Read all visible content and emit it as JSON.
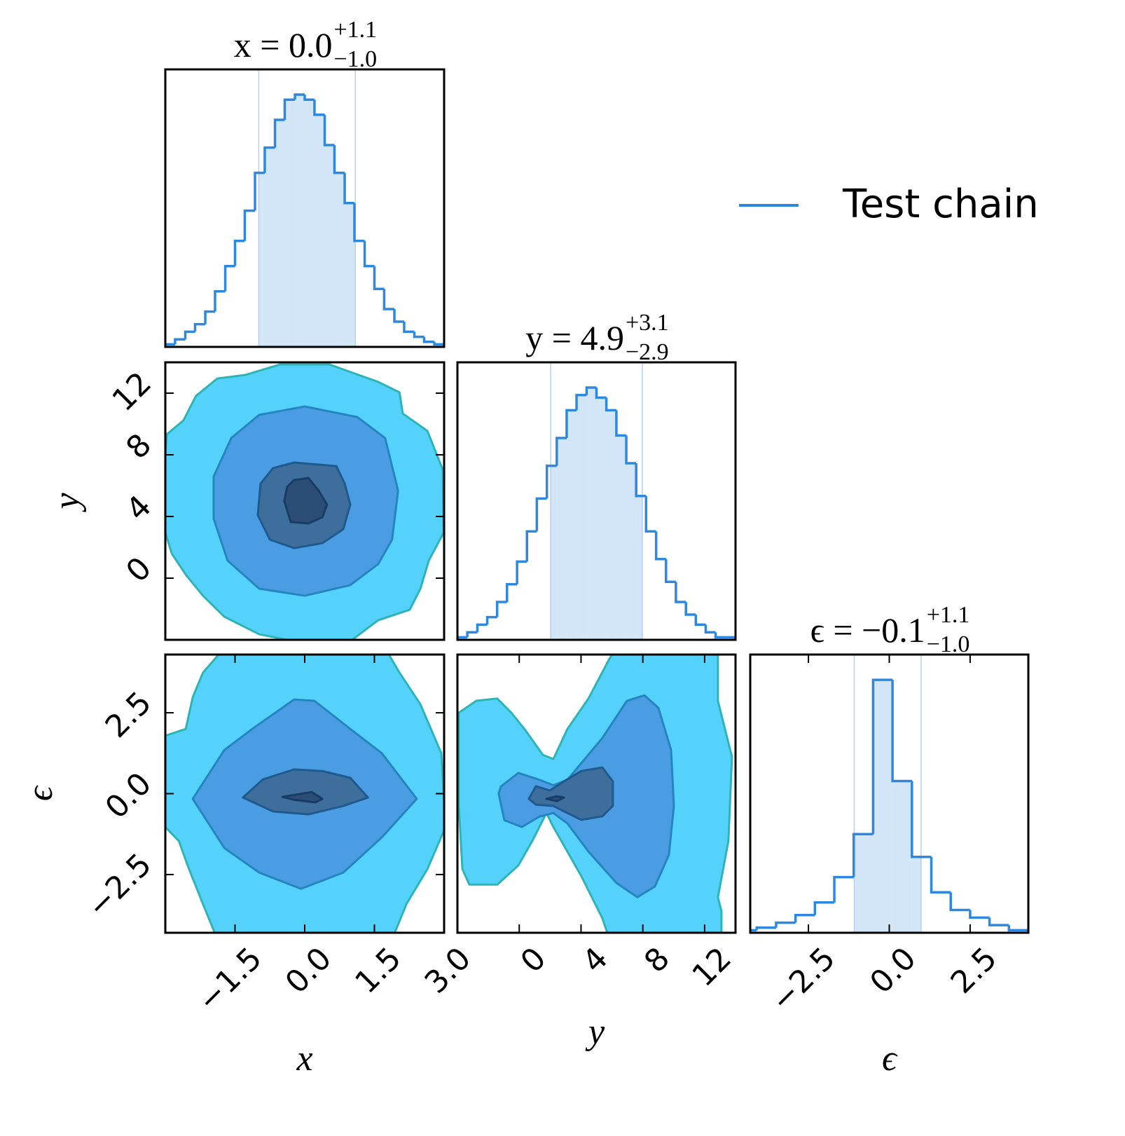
{
  "chart_data": [
    {
      "type": "histogram",
      "title": {
        "text": "x = 0.0",
        "upper": "+1.1",
        "lower": "−1.0"
      },
      "bins": [
        -3,
        -2.79,
        -2.57,
        -2.36,
        -2.14,
        -1.93,
        -1.71,
        -1.5,
        -1.29,
        -1.07,
        -0.86,
        -0.64,
        -0.43,
        -0.21,
        0,
        0.21,
        0.43,
        0.64,
        0.86,
        1.07,
        1.29,
        1.5,
        1.71,
        1.93,
        2.14,
        2.36,
        2.57,
        2.79,
        3
      ],
      "values": [
        0.01,
        0.03,
        0.06,
        0.09,
        0.14,
        0.22,
        0.32,
        0.42,
        0.54,
        0.69,
        0.79,
        0.9,
        0.98,
        1.0,
        0.98,
        0.92,
        0.8,
        0.69,
        0.57,
        0.42,
        0.32,
        0.23,
        0.15,
        0.1,
        0.06,
        0.04,
        0.02,
        0.01
      ],
      "xlim": [
        -3,
        3
      ],
      "ylim": [
        0,
        1.1
      ],
      "shade": [
        -1.0,
        1.1
      ],
      "color": "#2e88e0",
      "shade_color": "#d2e6f8"
    },
    {
      "type": "contour",
      "xlim": [
        -3,
        3
      ],
      "ylim": [
        -4,
        14
      ],
      "yticks": [
        0,
        4,
        8,
        12
      ],
      "ylabel": "y",
      "contours": [
        {
          "fill": "#55d2fc",
          "edge": "#2fb4b6",
          "x": [
            -2.97,
            -2.61,
            -2.34,
            -1.88,
            -1.28,
            -0.53,
            0.53,
            1.58,
            2.04,
            2.11,
            2.64,
            2.97,
            2.99,
            2.67,
            2.49,
            2.26,
            1.58,
            0.98,
            -0.23,
            -0.98,
            -1.73,
            -2.19,
            -2.56,
            -2.86,
            -3.0,
            -3.0
          ],
          "y": [
            9.32,
            10.23,
            11.82,
            12.95,
            13.18,
            13.86,
            13.86,
            12.73,
            12.05,
            10.68,
            9.55,
            7.05,
            2.95,
            1.14,
            -0.68,
            -2.05,
            -2.73,
            -4.09,
            -4.09,
            -3.64,
            -2.5,
            -1.14,
            0.23,
            1.59,
            2.95,
            7.95
          ]
        },
        {
          "fill": "#4a9de2",
          "edge": "#2585c0",
          "x": [
            0.0,
            1.13,
            1.73,
            2.01,
            1.88,
            1.58,
            0.98,
            0.0,
            -0.98,
            -1.66,
            -1.96,
            -1.96,
            -1.58,
            -0.98
          ],
          "y": [
            11.14,
            10.45,
            9.09,
            5.68,
            2.5,
            0.91,
            -0.45,
            -1.14,
            -0.68,
            1.14,
            3.86,
            6.59,
            9.09,
            10.59
          ]
        },
        {
          "fill": "#3d6e9c",
          "edge": "#1f5a8f",
          "x": [
            -0.23,
            0.68,
            0.86,
            0.98,
            0.83,
            0.38,
            -0.23,
            -0.75,
            -1.01,
            -0.95,
            -0.68
          ],
          "y": [
            7.5,
            7.27,
            6.14,
            4.77,
            3.18,
            2.27,
            1.95,
            2.5,
            4.09,
            6.14,
            7.14
          ]
        },
        {
          "fill": "#2b4d76",
          "edge": "#173d66",
          "x": [
            -0.23,
            0.08,
            0.3,
            0.48,
            0.38,
            0.08,
            -0.3,
            -0.44,
            -0.38
          ],
          "y": [
            6.36,
            6.5,
            5.68,
            4.77,
            3.95,
            3.55,
            3.64,
            5.0,
            5.91
          ]
        }
      ]
    },
    {
      "type": "histogram",
      "title": {
        "text": "y = 4.9",
        "upper": "+3.1",
        "lower": "−2.9"
      },
      "bins": [
        -4,
        -3.36,
        -2.71,
        -2.07,
        -1.43,
        -0.79,
        -0.14,
        0.5,
        1.14,
        1.79,
        2.43,
        3.07,
        3.71,
        4.36,
        5,
        5.64,
        6.29,
        6.93,
        7.57,
        8.21,
        8.86,
        9.5,
        10.14,
        10.79,
        11.43,
        12.07,
        12.71,
        13.36,
        14
      ],
      "values": [
        0.01,
        0.03,
        0.06,
        0.09,
        0.15,
        0.22,
        0.31,
        0.43,
        0.56,
        0.69,
        0.8,
        0.91,
        0.97,
        1.0,
        0.96,
        0.91,
        0.81,
        0.7,
        0.57,
        0.43,
        0.32,
        0.23,
        0.15,
        0.1,
        0.06,
        0.03,
        0.01,
        0.01
      ],
      "xlim": [
        -4,
        14
      ],
      "ylim": [
        0,
        1.1
      ],
      "shade": [
        2.0,
        8.0
      ],
      "color": "#2e88e0",
      "shade_color": "#d2e6f8"
    },
    {
      "type": "contour",
      "xlim": [
        -3,
        3
      ],
      "ylim": [
        -4.3,
        4.3
      ],
      "xticks": [
        {
          "value": -1.5,
          "label": "−1.5"
        },
        {
          "value": 0,
          "label": "0.0"
        },
        1.5,
        {
          "value": 3,
          "label": "3.0"
        }
      ],
      "yticks": [
        {
          "value": -2.5,
          "label": "−2.5"
        },
        {
          "value": 0,
          "label": "0.0"
        },
        2.5
      ],
      "xlabel": "x",
      "ylabel": "ϵ",
      "contours": [
        {
          "fill": "#55d2fc",
          "edge": "#2fb4b6",
          "x": [
            -3.0,
            -2.56,
            -2.41,
            -2.19,
            -1.73,
            1.73,
            2.04,
            2.49,
            2.94,
            3.03,
            2.64,
            2.19,
            1.88,
            -1.88,
            -2.19,
            -2.49,
            -2.71,
            -3.0
          ],
          "y": [
            1.79,
            2.0,
            2.98,
            3.74,
            4.5,
            4.5,
            3.74,
            2.76,
            1.25,
            -1.03,
            -2.33,
            -3.41,
            -4.5,
            -4.5,
            -3.41,
            -2.33,
            -1.46,
            -1.03
          ]
        },
        {
          "fill": "#4a9de2",
          "edge": "#2585c0",
          "x": [
            -2.41,
            -1.73,
            -1.13,
            -0.23,
            0.21,
            0.98,
            1.66,
            2.41,
            1.66,
            0.83,
            -0.08,
            -0.98,
            -1.73
          ],
          "y": [
            -0.16,
            1.35,
            2.0,
            2.91,
            2.87,
            2.0,
            1.25,
            -0.16,
            -1.35,
            -2.44,
            -2.94,
            -2.44,
            -1.68
          ]
        },
        {
          "fill": "#3d6e9c",
          "edge": "#1f5a8f",
          "x": [
            -1.33,
            -0.9,
            -0.23,
            0.38,
            0.98,
            1.36,
            0.83,
            0.08,
            -0.68
          ],
          "y": [
            -0.12,
            0.44,
            0.75,
            0.7,
            0.49,
            -0.12,
            -0.38,
            -0.64,
            -0.55
          ]
        },
        {
          "fill": "#2b4d76",
          "edge": "#173d66",
          "x": [
            -0.48,
            0.15,
            0.38,
            0.23,
            -0.23
          ],
          "y": [
            -0.1,
            0.05,
            -0.16,
            -0.27,
            -0.19
          ]
        }
      ]
    },
    {
      "type": "contour",
      "xlim": [
        -4,
        14
      ],
      "ylim": [
        -4.3,
        4.3
      ],
      "xticks": [
        0,
        4,
        8,
        12
      ],
      "xlabel": "y",
      "contours": [
        {
          "fill": "#55d2fc",
          "edge": "#2fb4b6",
          "x": [
            -3.91,
            -2.78,
            -1.42,
            -0.51,
            0.4,
            1.53,
            2.21,
            3.12,
            4.48,
            5.84,
            6.29,
            12.86,
            12.86,
            13.77,
            13.54,
            12.86,
            13.09,
            13.09,
            5.84,
            5.38,
            4.02,
            2.21,
            1.76,
            0.85,
            -0.06,
            -1.42,
            -3.23,
            -3.68,
            -3.91
          ],
          "y": [
            2.5,
            2.87,
            2.94,
            2.5,
            1.96,
            1.2,
            1.07,
            2.0,
            2.94,
            4.17,
            4.5,
            4.5,
            2.87,
            1.14,
            -1.46,
            -3.2,
            -3.63,
            -4.5,
            -4.5,
            -3.85,
            -2.55,
            -1.03,
            -0.6,
            -1.46,
            -2.22,
            -2.81,
            -2.81,
            -2.33,
            -0.38
          ]
        },
        {
          "fill": "#4a9de2",
          "edge": "#2585c0",
          "x": [
            -1.19,
            -0.06,
            1.3,
            2.21,
            3.12,
            5.38,
            6.97,
            8.1,
            9.01,
            9.83,
            10.01,
            9.69,
            8.78,
            7.65,
            6.29,
            4.48,
            3.12,
            2.21,
            1.3,
            0.17,
            -0.96,
            -1.33
          ],
          "y": [
            0.22,
            0.64,
            0.43,
            0.26,
            0.43,
            1.72,
            2.87,
            3.04,
            2.65,
            1.35,
            -0.38,
            -1.89,
            -2.87,
            -3.2,
            -2.76,
            -1.79,
            -0.92,
            -0.6,
            -0.71,
            -1.03,
            -0.82,
            0.0
          ]
        },
        {
          "fill": "#3d6e9c",
          "edge": "#1f5a8f",
          "x": [
            0.62,
            1.08,
            1.98,
            2.89,
            4.02,
            5.38,
            6.06,
            6.06,
            5.38,
            4.02,
            3.12,
            2.21,
            1.08
          ],
          "y": [
            -0.16,
            0.23,
            0.1,
            0.38,
            0.7,
            0.81,
            0.38,
            -0.38,
            -0.7,
            -0.81,
            -0.6,
            -0.38,
            -0.34
          ]
        },
        {
          "fill": "#2b4d76",
          "edge": "#173d66",
          "x": [
            1.76,
            2.44,
            2.89,
            2.44
          ],
          "y": [
            -0.16,
            -0.08,
            -0.12,
            -0.23
          ]
        }
      ]
    },
    {
      "type": "histogram",
      "title": {
        "text": "ϵ = −0.1",
        "upper": "+1.1",
        "lower": "−1.0"
      },
      "bins": [
        -4.7,
        -4.1,
        -3.5,
        -2.9,
        -2.3,
        -1.7,
        -1.1,
        -0.5,
        0.1,
        0.7,
        1.3,
        1.9,
        2.5,
        3.1,
        3.7,
        4.3
      ],
      "values": [
        0.01,
        0.02,
        0.04,
        0.07,
        0.12,
        0.22,
        0.39,
        1.0,
        0.6,
        0.3,
        0.16,
        0.09,
        0.06,
        0.03,
        0.01
      ],
      "xlim": [
        -4.3,
        4.3
      ],
      "ylim": [
        0,
        1.1
      ],
      "shade": [
        -1.1,
        1.0
      ],
      "xticks": [
        {
          "value": -2.5,
          "label": "−2.5"
        },
        {
          "value": 0,
          "label": "0.0"
        },
        2.5
      ],
      "xlabel": "ϵ",
      "color": "#2e88e0",
      "shade_color": "#d2e6f8"
    }
  ],
  "legend": {
    "entries": [
      {
        "name": "Test chain",
        "color": "#2e88e0"
      }
    ]
  }
}
